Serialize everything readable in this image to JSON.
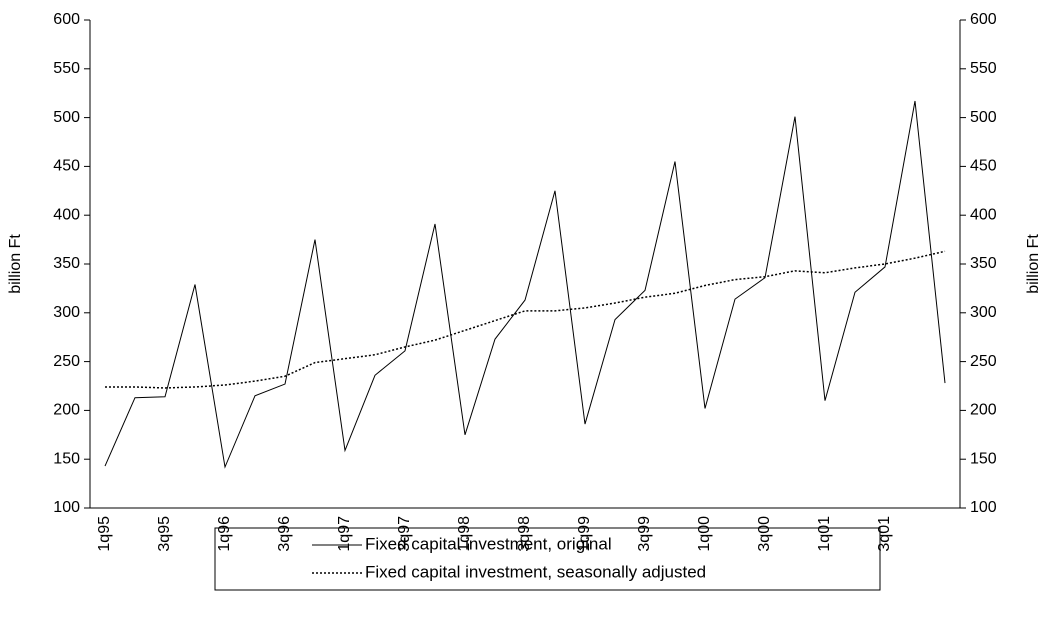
{
  "chart_data": {
    "type": "line",
    "categories": [
      "1q95",
      null,
      "3q95",
      null,
      "1q96",
      null,
      "3q96",
      null,
      "1q97",
      null,
      "3q97",
      null,
      "1q98",
      null,
      "3q98",
      null,
      "1q99",
      null,
      "3q99",
      null,
      "1q00",
      null,
      "3q00",
      null,
      "1q01",
      null,
      "3q01",
      null,
      null
    ],
    "series": [
      {
        "name": "Fixed capital investment, original",
        "color": "#000000",
        "dash": "solid",
        "values": [
          143,
          213,
          214,
          329,
          142,
          215,
          227,
          375,
          159,
          236,
          261,
          391,
          175,
          273,
          313,
          425,
          186,
          293,
          323,
          455,
          202,
          314,
          336,
          501,
          210,
          321,
          347,
          517,
          228
        ]
      },
      {
        "name": "Fixed capital investment, seasonally adjusted",
        "color": "#000000",
        "dash": "dotted",
        "values": [
          224,
          224,
          223,
          224,
          226,
          230,
          235,
          249,
          253,
          257,
          265,
          272,
          282,
          292,
          302,
          302,
          305,
          310,
          316,
          320,
          328,
          334,
          337,
          343,
          341,
          346,
          350,
          356,
          363
        ]
      }
    ],
    "ylabel": "billion Ft",
    "y2label": "billion Ft",
    "ylim": [
      100,
      600
    ],
    "yticks": [
      100,
      150,
      200,
      250,
      300,
      350,
      400,
      450,
      500,
      550,
      600
    ],
    "y2lim": [
      100,
      600
    ],
    "y2ticks": [
      100,
      150,
      200,
      250,
      300,
      350,
      400,
      450,
      500,
      550,
      600
    ],
    "grid": false,
    "legend": "bottom"
  }
}
